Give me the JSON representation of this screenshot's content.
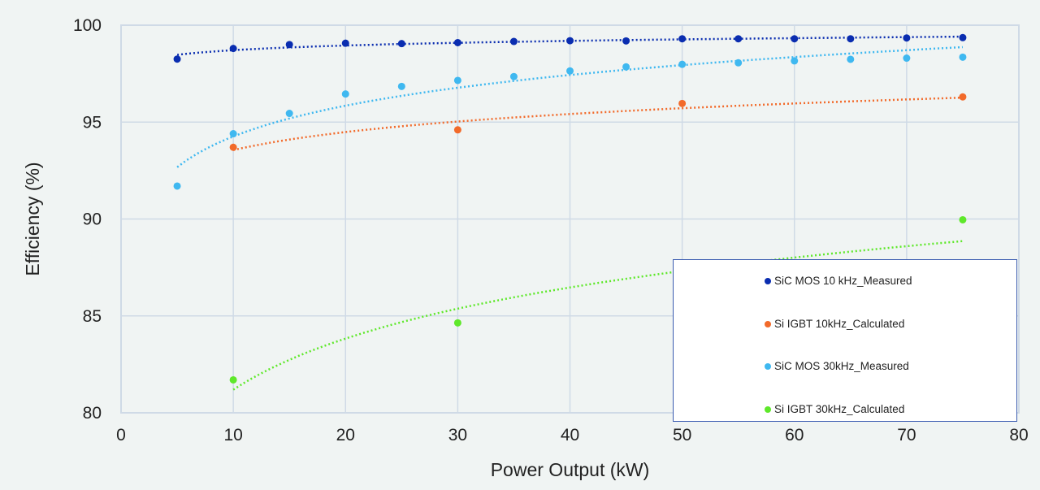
{
  "chart_data": {
    "type": "scatter",
    "title": "",
    "xlabel": "Power Output (kW)",
    "ylabel": "Efficiency (%)",
    "xlim": [
      0,
      80
    ],
    "ylim": [
      80,
      100
    ],
    "xticks": [
      "0",
      "10",
      "20",
      "30",
      "40",
      "50",
      "60",
      "70",
      "80"
    ],
    "yticks": [
      "80",
      "85",
      "90",
      "95",
      "100"
    ],
    "grid": true,
    "trendline": "logarithmic, dotted",
    "legend_position": "bottom-right",
    "series": [
      {
        "name": "SiC MOS 10 kHz_Measured",
        "color": "#0a2db0",
        "x": [
          5,
          10,
          15,
          20,
          25,
          30,
          35,
          40,
          45,
          50,
          55,
          60,
          65,
          70,
          75
        ],
        "y": [
          98.25,
          98.8,
          99.0,
          99.07,
          99.05,
          99.1,
          99.16,
          99.2,
          99.19,
          99.3,
          99.3,
          99.3,
          99.3,
          99.34,
          99.36
        ]
      },
      {
        "name": "Si IGBT 10kHz_Calculated",
        "color": "#f26a2a",
        "x": [
          10,
          30,
          50,
          75
        ],
        "y": [
          93.7,
          94.6,
          95.96,
          96.3
        ]
      },
      {
        "name": "SiC MOS 30kHz_Measured",
        "color": "#3fb8f0",
        "x": [
          5,
          10,
          15,
          20,
          25,
          30,
          35,
          40,
          45,
          50,
          55,
          60,
          65,
          70,
          75
        ],
        "y": [
          91.7,
          94.4,
          95.45,
          96.45,
          96.84,
          97.15,
          97.35,
          97.64,
          97.85,
          97.98,
          98.06,
          98.16,
          98.24,
          98.3,
          98.35
        ]
      },
      {
        "name": "Si IGBT 30kHz_Calculated",
        "color": "#5ee82a",
        "x": [
          10,
          30,
          50,
          75
        ],
        "y": [
          81.7,
          84.64,
          86.44,
          89.96
        ]
      }
    ]
  }
}
